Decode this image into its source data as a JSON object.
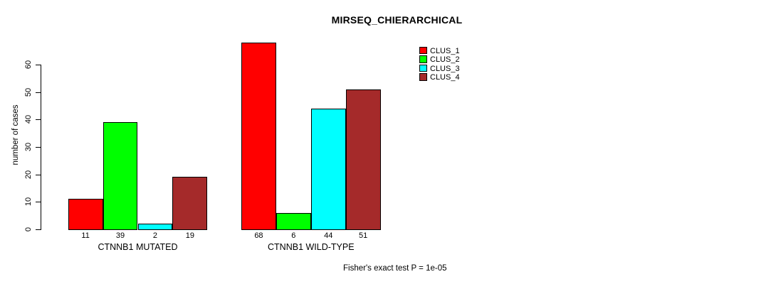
{
  "title": "MIRSEQ_CHIERARCHICAL",
  "footer": {
    "text": "Fisher's exact test P = 1e-05"
  },
  "chart_data": {
    "type": "bar",
    "title": "MIRSEQ_CHIERARCHICAL",
    "xlabel": "",
    "ylabel": "number of cases",
    "ylim": [
      0,
      60
    ],
    "yticks": [
      0,
      10,
      20,
      30,
      40,
      50,
      60
    ],
    "grid": false,
    "legend_position": "top-right",
    "categories": [
      "CTNNB1 MUTATED",
      "CTNNB1 WILD-TYPE"
    ],
    "series": [
      {
        "name": "CLUS_1",
        "color": "#FF0000",
        "values": [
          11,
          68
        ]
      },
      {
        "name": "CLUS_2",
        "color": "#00FF00",
        "values": [
          39,
          6
        ]
      },
      {
        "name": "CLUS_3",
        "color": "#00FFFF",
        "values": [
          2,
          44
        ]
      },
      {
        "name": "CLUS_4",
        "color": "#A52A2A",
        "values": [
          19,
          51
        ]
      }
    ],
    "bar_value_labels": [
      [
        11,
        39,
        2,
        19
      ],
      [
        68,
        6,
        44,
        51
      ]
    ],
    "annotation": "Fisher's exact test P = 1e-05"
  }
}
